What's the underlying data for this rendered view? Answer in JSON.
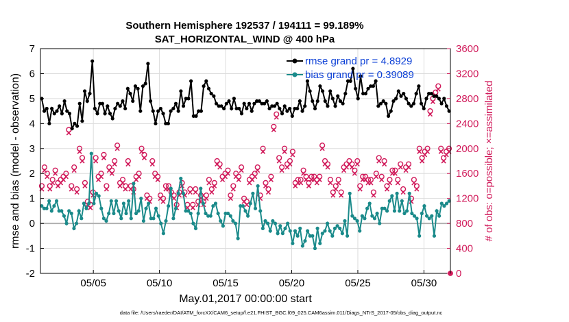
{
  "chart_data": {
    "type": "line",
    "title_line1": "Southern Hemisphere 192537 / 194111 = 99.189%",
    "title_line2": "SAT_HORIZONTAL_WIND @ 400 hPa",
    "xlabel": "May.01,2017 00:00:00 start",
    "ylabel": "rmse and bias (model - observation)",
    "ylabel_right": "# of obs: o=possible; ×=assimilated",
    "footer": "data file: /Users/raeder/DAI/ATM_forcXX/CAM6_setup/f.e21.FHIST_BGC.f09_025.CAM6assim.011/Diags_NTrS_2017-05/obs_diag_output.nc",
    "x_tick_labels": [
      "05/05",
      "05/10",
      "05/15",
      "05/20",
      "05/25",
      "05/30"
    ],
    "x_tick_days": [
      5,
      10,
      15,
      20,
      25,
      30
    ],
    "x_range_days": [
      1,
      32
    ],
    "ylim": [
      -2,
      7
    ],
    "y_ticks": [
      "-2",
      "-1",
      "0",
      "1",
      "2",
      "3",
      "4",
      "5",
      "6",
      "7"
    ],
    "ylim_right": [
      0,
      3600
    ],
    "y_ticks_right": [
      "0",
      "400",
      "800",
      "1200",
      "1600",
      "2000",
      "2400",
      "2800",
      "3200",
      "3600"
    ],
    "grid": true,
    "legend_placement": "top-right",
    "colors": {
      "rmse": "#000000",
      "bias": "#1a8a8a",
      "obs": "#d11b5b",
      "zero_line": "#b0b0b0"
    },
    "series": [
      {
        "name": "rmse grand pr = 4.8929",
        "values": [
          5.0,
          4.5,
          4.6,
          4.0,
          4.6,
          4.4,
          4.5,
          4.7,
          4.4,
          4.9,
          4.5,
          4.4,
          3.8,
          4.0,
          3.9,
          4.8,
          4.1,
          5.3,
          4.9,
          5.2,
          6.5,
          4.6,
          4.4,
          4.8,
          4.8,
          4.4,
          4.7,
          4.4,
          4.2,
          4.6,
          4.8,
          4.7,
          4.9,
          4.6,
          5.4,
          5.2,
          4.9,
          5.5,
          5.4,
          4.5,
          5.5,
          5.6,
          6.4,
          4.9,
          4.5,
          4.0,
          4.5,
          4.6,
          4.4,
          4.0,
          4.0,
          4.5,
          4.6,
          4.8,
          4.5,
          5.3,
          4.7,
          5.0,
          5.0,
          5.7,
          4.3,
          4.3,
          4.5,
          4.5,
          5.5,
          5.7,
          5.4,
          5.2,
          5.1,
          4.8,
          4.7,
          4.7,
          4.6,
          4.8,
          4.9,
          4.6,
          5.0,
          4.6,
          4.6,
          4.4,
          4.8,
          4.6,
          4.8,
          4.5,
          4.8,
          4.9,
          4.9,
          4.8,
          4.8,
          4.9,
          4.6,
          4.7,
          4.7,
          4.8,
          4.6,
          4.4,
          4.7,
          4.5,
          4.6,
          4.3,
          4.6,
          4.6,
          4.9,
          4.5,
          4.7,
          5.7,
          5.3,
          4.9,
          4.6,
          4.9,
          5.5,
          5.3,
          4.9,
          4.7,
          5.3,
          5.0,
          4.7,
          5.1,
          4.9,
          4.8,
          5.2,
          5.7,
          5.7,
          6.2,
          5.4,
          5.0,
          5.9,
          5.2,
          5.2,
          5.4,
          5.5,
          5.5,
          5.7,
          4.7,
          4.8,
          4.9,
          4.8,
          4.3,
          4.5,
          4.9,
          5.0,
          5.3,
          5.1,
          5.2,
          5.0,
          4.8,
          4.7,
          4.8,
          5.2,
          5.5,
          4.8,
          4.6,
          5.0,
          5.2,
          5.2,
          5.1,
          5.1,
          5.0,
          4.8,
          5.0,
          4.7,
          4.5
        ]
      },
      {
        "name": "bias grand pr = 0.39089",
        "values": [
          0.7,
          0.6,
          0.6,
          0.9,
          0.5,
          0.7,
          0.9,
          0.5,
          0.5,
          0.3,
          0.0,
          0.5,
          0.4,
          -0.2,
          0.0,
          0.5,
          0.2,
          0.8,
          0.6,
          0.8,
          2.8,
          0.8,
          1.2,
          1.1,
          0.6,
          0.2,
          0.1,
          0.4,
          0.9,
          0.4,
          0.9,
          0.5,
          0.2,
          0.8,
          0.4,
          0.9,
          0.2,
          1.6,
          0.4,
          0.5,
          1.0,
          0.1,
          0.6,
          0.8,
          0.2,
          0.2,
          0.6,
          0.3,
          0.0,
          -0.4,
          0.1,
          0.7,
          1.4,
          0.2,
          0.6,
          1.2,
          1.8,
          1.2,
          0.5,
          0.5,
          0.4,
          0.0,
          -0.2,
          0.4,
          1.4,
          0.8,
          0.4,
          0.3,
          0.3,
          0.7,
          0.8,
          0.4,
          0.1,
          -0.1,
          0.4,
          0.4,
          0.3,
          0.1,
          0.0,
          -0.6,
          0.7,
          0.7,
          0.5,
          0.3,
          0.8,
          1.2,
          0.6,
          1.5,
          0.5,
          -0.2,
          0.1,
          0.0,
          -0.3,
          0.1,
          0.0,
          -0.4,
          -0.1,
          -0.4,
          -0.2,
          0.0,
          -0.3,
          -0.8,
          -0.3,
          -0.5,
          -0.2,
          -0.9,
          -0.7,
          -0.3,
          -0.5,
          -0.5,
          -1.0,
          -0.2,
          -0.8,
          -0.4,
          -0.3,
          0.0,
          -0.3,
          -0.5,
          -0.2,
          -0.1,
          -0.2,
          -0.4,
          0.1,
          -0.5,
          1.2,
          0.3,
          0.2,
          0.1,
          -0.3,
          0.3,
          0.2,
          0.6,
          0.8,
          0.3,
          0.2,
          0.4,
          0.0,
          0.6,
          0.6,
          0.5,
          0.9,
          1.1,
          0.5,
          1.2,
          0.5,
          0.9,
          0.4,
          0.5,
          1.2,
          0.4,
          0.3,
          0.2,
          -0.5,
          0.4,
          0.7,
          0.3,
          0.2,
          0.3,
          -0.5,
          0.5,
          0.3,
          0.8,
          0.7,
          0.8,
          0.9
        ]
      },
      {
        "name": "possible",
        "values": [
          1400,
          1700,
          1600,
          1400,
          1500,
          1650,
          1450,
          1500,
          1550,
          1600,
          2300,
          1400,
          1700,
          1350,
          2000,
          1850,
          1450,
          1150,
          1100,
          1300,
          1850,
          1550,
          1600,
          1900,
          1400,
          1700,
          1650,
          1800,
          2050,
          1450,
          1500,
          1400,
          1800,
          1400,
          1350,
          1550,
          1600,
          2000,
          1900,
          1250,
          1200,
          1800,
          1600,
          1550,
          1250,
          1200,
          1400,
          1400,
          1300,
          1250,
          1100,
          1300,
          1450,
          1300,
          1100,
          1350,
          1100,
          1350,
          1150,
          1250,
          1150,
          1250,
          1500,
          1350,
          1450,
          1800,
          1750,
          1550,
          1600,
          1650,
          1250,
          1400,
          1600,
          1550,
          1700,
          1200,
          1150,
          1500,
          1550,
          1600,
          1700,
          1250,
          2000,
          1450,
          1350,
          1550,
          2350,
          2550,
          1850,
          1700,
          2000,
          1750,
          1800,
          1950,
          1450,
          1500,
          1500,
          1650,
          1550,
          1450,
          1550,
          1550,
          1500,
          1550,
          2050,
          1800,
          1750,
          1500,
          1300,
          1400,
          1500,
          1300,
          1700,
          1750,
          1800,
          1750,
          1650,
          1800,
          1400,
          1550,
          1550,
          1500,
          1500,
          1300,
          1600,
          1850,
          1550,
          1800,
          1400,
          1500,
          1650,
          1650,
          1500,
          1750,
          1350,
          1700,
          1750,
          1200,
          1500,
          1400,
          2000,
          1850,
          1950,
          2000,
          2600,
          2800,
          2900,
          3000,
          2000,
          1850,
          1950,
          2000
        ]
      },
      {
        "name": "assimilated",
        "values": [
          1350,
          1650,
          1550,
          1350,
          1450,
          1600,
          1400,
          1450,
          1500,
          1550,
          2250,
          1350,
          1650,
          1300,
          1950,
          1800,
          1400,
          1100,
          1050,
          1250,
          1800,
          1500,
          1550,
          1850,
          1350,
          1650,
          1600,
          1750,
          2000,
          1400,
          1450,
          1350,
          1750,
          1350,
          1300,
          1500,
          1550,
          1950,
          1850,
          1200,
          1150,
          1750,
          1550,
          1500,
          1200,
          1150,
          1350,
          1350,
          1250,
          1200,
          1050,
          1250,
          1400,
          1250,
          1050,
          1300,
          1050,
          1300,
          1100,
          1200,
          1100,
          1200,
          1450,
          1300,
          1400,
          1750,
          1700,
          1500,
          1550,
          1600,
          1200,
          1350,
          1550,
          1500,
          1650,
          1150,
          1100,
          1450,
          1500,
          1550,
          1650,
          1200,
          1950,
          1400,
          1300,
          1500,
          2300,
          2500,
          1800,
          1650,
          1950,
          1700,
          1750,
          1900,
          1400,
          1450,
          1450,
          1600,
          1500,
          1400,
          1500,
          1500,
          1450,
          1500,
          2000,
          1750,
          1700,
          1450,
          1250,
          1350,
          1450,
          1250,
          1650,
          1700,
          1750,
          1700,
          1600,
          1750,
          1350,
          1500,
          1500,
          1450,
          1450,
          1250,
          1550,
          1800,
          1500,
          1750,
          1350,
          1450,
          1600,
          1600,
          1450,
          1700,
          1300,
          1650,
          1700,
          1150,
          1450,
          1350,
          1950,
          1800,
          1900,
          1950,
          2550,
          2750,
          2850,
          2950,
          1950,
          1800,
          1900,
          1950
        ]
      }
    ],
    "last_point_possible": 0
  }
}
